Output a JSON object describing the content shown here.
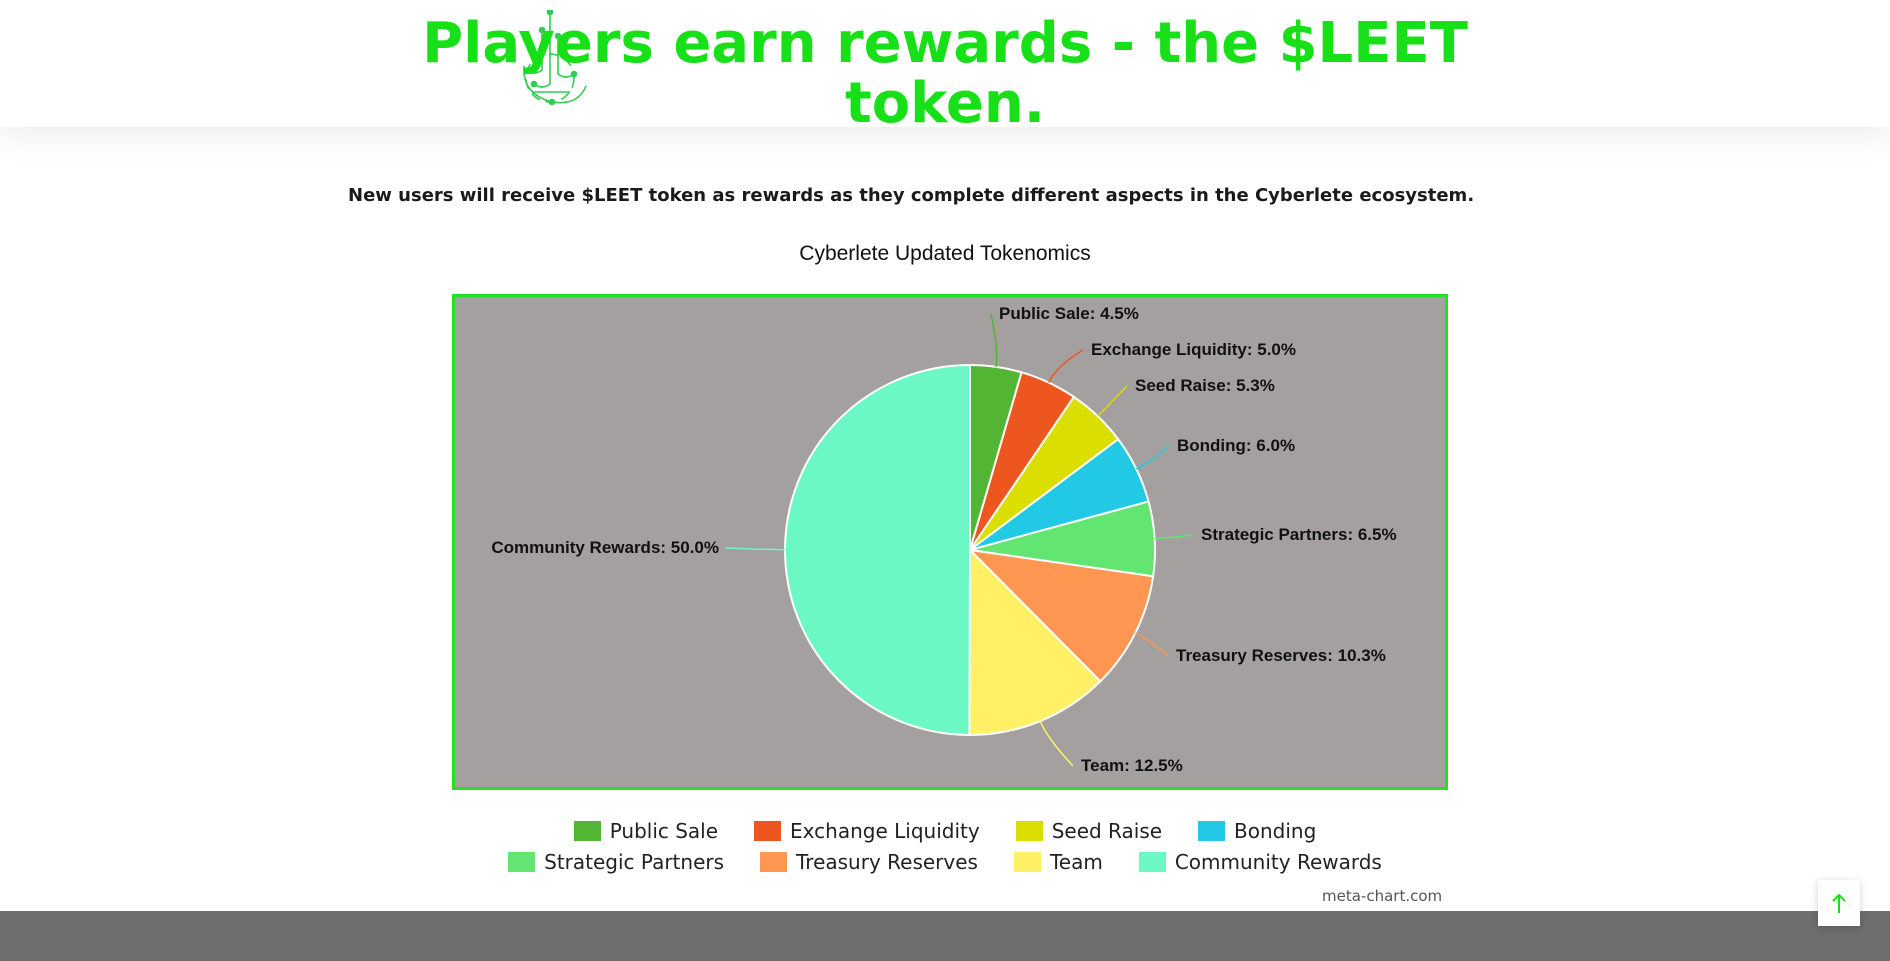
{
  "headline": "Players earn rewards - the $LEET token.",
  "intro": "New users will receive $LEET token as rewards as they complete different aspects in the Cyberlete ecosystem.",
  "chart_credit": "meta-chart.com",
  "colors": {
    "accent": "#18e018",
    "chart_bg": "#a4a09f",
    "chart_border": "#26e026",
    "footer": "#6e6e6e"
  },
  "icons": {
    "logo": "cyberlete-circuit-logo",
    "scroll_top": "arrow-up-icon"
  },
  "chart_data": {
    "type": "pie",
    "title": "Cyberlete Updated Tokenomics",
    "legend_position": "bottom",
    "slices": [
      {
        "name": "Public Sale",
        "value": 4.5,
        "label": "Public Sale: 4.5%",
        "color": "#52b534"
      },
      {
        "name": "Exchange Liquidity",
        "value": 5.0,
        "label": "Exchange Liquidity: 5.0%",
        "color": "#ee5620"
      },
      {
        "name": "Seed Raise",
        "value": 5.3,
        "label": "Seed Raise: 5.3%",
        "color": "#dbdf00"
      },
      {
        "name": "Bonding",
        "value": 6.0,
        "label": "Bonding: 6.0%",
        "color": "#22c9e4"
      },
      {
        "name": "Strategic Partners",
        "value": 6.5,
        "label": "Strategic Partners: 6.5%",
        "color": "#62e571"
      },
      {
        "name": "Treasury Reserves",
        "value": 10.3,
        "label": "Treasury Reserves: 10.3%",
        "color": "#ff9752"
      },
      {
        "name": "Team",
        "value": 12.5,
        "label": "Team: 12.5%",
        "color": "#fff066"
      },
      {
        "name": "Community Rewards",
        "value": 50.0,
        "label": "Community Rewards: 50.0%",
        "color": "#6bf8c5"
      }
    ]
  }
}
